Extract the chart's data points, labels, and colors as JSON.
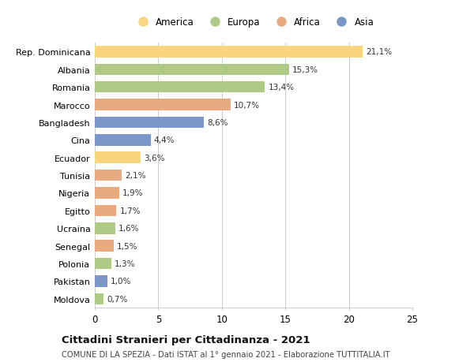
{
  "countries": [
    "Moldova",
    "Pakistan",
    "Polonia",
    "Senegal",
    "Ucraina",
    "Egitto",
    "Nigeria",
    "Tunisia",
    "Ecuador",
    "Cina",
    "Bangladesh",
    "Marocco",
    "Romania",
    "Albania",
    "Rep. Dominicana"
  ],
  "values": [
    0.7,
    1.0,
    1.3,
    1.5,
    1.6,
    1.7,
    1.9,
    2.1,
    3.6,
    4.4,
    8.6,
    10.7,
    13.4,
    15.3,
    21.1
  ],
  "labels": [
    "0,7%",
    "1,0%",
    "1,3%",
    "1,5%",
    "1,6%",
    "1,7%",
    "1,9%",
    "2,1%",
    "3,6%",
    "4,4%",
    "8,6%",
    "10,7%",
    "13,4%",
    "15,3%",
    "21,1%"
  ],
  "continents": [
    "Europa",
    "Asia",
    "Europa",
    "Africa",
    "Europa",
    "Africa",
    "Africa",
    "Africa",
    "America",
    "Asia",
    "Asia",
    "Africa",
    "Europa",
    "Europa",
    "America"
  ],
  "colors": {
    "America": "#F9D580",
    "Europa": "#AECA85",
    "Africa": "#E8AA7E",
    "Asia": "#7B96C8"
  },
  "legend_order": [
    "America",
    "Europa",
    "Africa",
    "Asia"
  ],
  "xlim": [
    0,
    25
  ],
  "xticks": [
    0,
    5,
    10,
    15,
    20,
    25
  ],
  "title": "Cittadini Stranieri per Cittadinanza - 2021",
  "subtitle": "COMUNE DI LA SPEZIA - Dati ISTAT al 1° gennaio 2021 - Elaborazione TUTTITALIA.IT",
  "bg_color": "#FFFFFF",
  "grid_color": "#CCCCCC",
  "bar_height": 0.65
}
